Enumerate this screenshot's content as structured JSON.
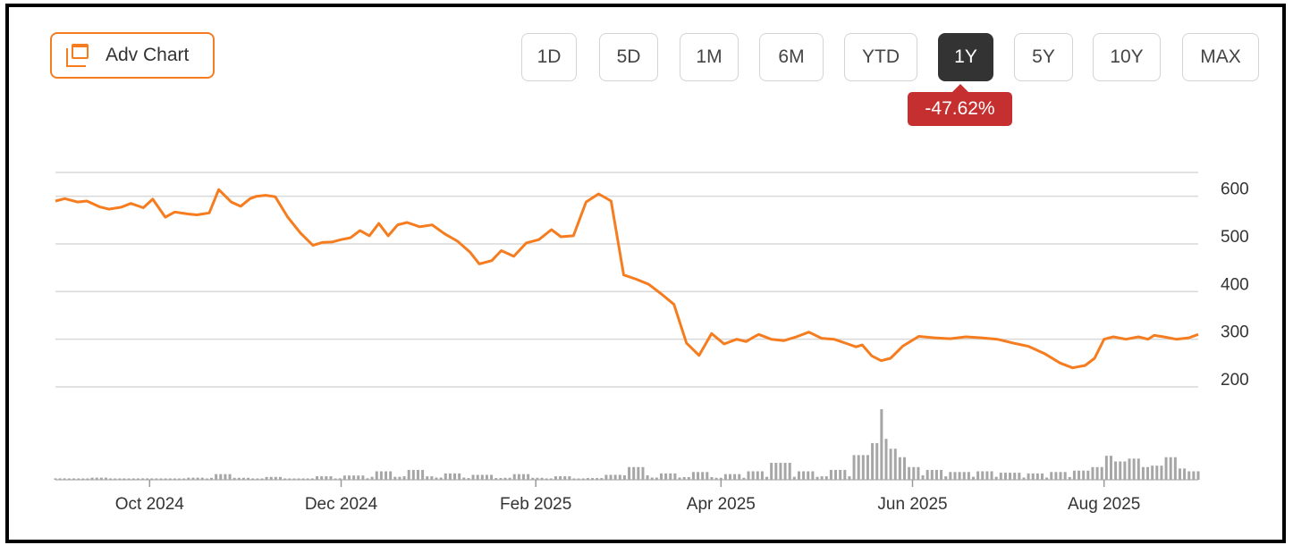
{
  "toolbar": {
    "adv_chart_label": "Adv Chart",
    "ranges": [
      "1D",
      "5D",
      "1M",
      "6M",
      "YTD",
      "1Y",
      "5Y",
      "10Y",
      "MAX"
    ],
    "active_range": "1Y",
    "change_badge": "-47.62%"
  },
  "colors": {
    "line": "#f57c1f",
    "volume": "#a6a6a6",
    "grid": "#d9d9d9",
    "badge": "#c62f2f",
    "active_button": "#333333"
  },
  "chart_data": {
    "type": "line",
    "title": "",
    "xlabel": "",
    "ylabel": "",
    "ylim": [
      200,
      650
    ],
    "y_ticks": [
      600,
      500,
      400,
      300,
      200
    ],
    "x_ticks": [
      "Oct 2024",
      "Dec 2024",
      "Feb 2025",
      "Apr 2025",
      "Jun 2025",
      "Aug 2025"
    ],
    "x_tick_dates": [
      "2024-10-01",
      "2024-12-01",
      "2025-02-01",
      "2025-04-01",
      "2025-06-01",
      "2025-08-01"
    ],
    "grid": true,
    "x_range": [
      "2024-09-01",
      "2025-08-31"
    ],
    "series": [
      {
        "x": [
          "2024-09-01",
          "2024-09-04",
          "2024-09-08",
          "2024-09-11",
          "2024-09-15",
          "2024-09-18",
          "2024-09-22",
          "2024-09-25",
          "2024-09-29",
          "2024-10-02",
          "2024-10-06",
          "2024-10-09",
          "2024-10-13",
          "2024-10-16",
          "2024-10-20",
          "2024-10-23",
          "2024-10-27",
          "2024-10-30",
          "2024-11-02",
          "2024-11-04",
          "2024-11-07",
          "2024-11-10",
          "2024-11-14",
          "2024-11-18",
          "2024-11-22",
          "2024-11-25",
          "2024-11-28",
          "2024-12-01",
          "2024-12-04",
          "2024-12-07",
          "2024-12-10",
          "2024-12-13",
          "2024-12-16",
          "2024-12-19",
          "2024-12-22",
          "2024-12-26",
          "2024-12-30",
          "2025-01-03",
          "2025-01-07",
          "2025-01-11",
          "2025-01-14",
          "2025-01-18",
          "2025-01-21",
          "2025-01-25",
          "2025-01-29",
          "2025-02-02",
          "2025-02-06",
          "2025-02-09",
          "2025-02-13",
          "2025-02-17",
          "2025-02-21",
          "2025-02-25",
          "2025-03-01",
          "2025-03-05",
          "2025-03-09",
          "2025-03-13",
          "2025-03-17",
          "2025-03-21",
          "2025-03-25",
          "2025-03-29",
          "2025-04-02",
          "2025-04-06",
          "2025-04-09",
          "2025-04-11",
          "2025-04-13",
          "2025-04-17",
          "2025-04-21",
          "2025-04-25",
          "2025-04-29",
          "2025-05-03",
          "2025-05-07",
          "2025-05-11",
          "2025-05-14",
          "2025-05-16",
          "2025-05-19",
          "2025-05-22",
          "2025-05-25",
          "2025-05-29",
          "2025-06-03",
          "2025-06-08",
          "2025-06-13",
          "2025-06-18",
          "2025-06-23",
          "2025-06-28",
          "2025-07-03",
          "2025-07-08",
          "2025-07-13",
          "2025-07-18",
          "2025-07-22",
          "2025-07-26",
          "2025-07-29",
          "2025-08-01",
          "2025-08-04",
          "2025-08-08",
          "2025-08-12",
          "2025-08-15",
          "2025-08-17",
          "2025-08-20",
          "2025-08-24",
          "2025-08-28",
          "2025-08-31"
        ],
        "values": [
          590,
          595,
          588,
          590,
          578,
          573,
          577,
          585,
          576,
          594,
          556,
          567,
          563,
          561,
          565,
          614,
          588,
          579,
          595,
          600,
          602,
          599,
          556,
          523,
          497,
          503,
          504,
          509,
          513,
          528,
          517,
          543,
          517,
          540,
          545,
          536,
          540,
          521,
          506,
          483,
          458,
          465,
          486,
          474,
          502,
          509,
          530,
          515,
          517,
          588,
          605,
          590,
          435,
          426,
          415,
          395,
          373,
          292,
          266,
          312,
          290,
          300,
          295,
          303,
          310,
          300,
          297,
          305,
          315,
          302,
          300,
          291,
          284,
          288,
          265,
          255,
          260,
          286,
          306,
          303,
          301,
          305,
          303,
          300,
          292,
          285,
          270,
          250,
          240,
          245,
          260,
          300,
          305,
          300,
          305,
          300,
          308,
          305,
          300,
          303,
          310
        ],
        "name": ""
      }
    ],
    "volume": [
      {
        "x": "2024-09-01",
        "v": 2
      },
      {
        "x": "2024-09-15",
        "v": 3
      },
      {
        "x": "2024-10-01",
        "v": 2
      },
      {
        "x": "2024-10-15",
        "v": 3
      },
      {
        "x": "2024-10-25",
        "v": 8
      },
      {
        "x": "2024-11-10",
        "v": 4
      },
      {
        "x": "2024-11-25",
        "v": 5
      },
      {
        "x": "2024-12-05",
        "v": 6
      },
      {
        "x": "2024-12-15",
        "v": 12
      },
      {
        "x": "2024-12-25",
        "v": 14
      },
      {
        "x": "2025-01-05",
        "v": 9
      },
      {
        "x": "2025-01-15",
        "v": 7
      },
      {
        "x": "2025-01-28",
        "v": 8
      },
      {
        "x": "2025-02-10",
        "v": 5
      },
      {
        "x": "2025-02-25",
        "v": 7
      },
      {
        "x": "2025-03-05",
        "v": 18
      },
      {
        "x": "2025-03-15",
        "v": 9
      },
      {
        "x": "2025-03-25",
        "v": 11
      },
      {
        "x": "2025-04-05",
        "v": 8
      },
      {
        "x": "2025-04-12",
        "v": 12
      },
      {
        "x": "2025-04-20",
        "v": 24
      },
      {
        "x": "2025-04-28",
        "v": 12
      },
      {
        "x": "2025-05-08",
        "v": 14
      },
      {
        "x": "2025-05-16",
        "v": 35
      },
      {
        "x": "2025-05-20",
        "v": 52
      },
      {
        "x": "2025-05-22",
        "v": 100
      },
      {
        "x": "2025-05-24",
        "v": 58
      },
      {
        "x": "2025-05-26",
        "v": 44
      },
      {
        "x": "2025-05-28",
        "v": 32
      },
      {
        "x": "2025-06-01",
        "v": 18
      },
      {
        "x": "2025-06-08",
        "v": 14
      },
      {
        "x": "2025-06-16",
        "v": 11
      },
      {
        "x": "2025-06-24",
        "v": 12
      },
      {
        "x": "2025-07-02",
        "v": 10
      },
      {
        "x": "2025-07-10",
        "v": 9
      },
      {
        "x": "2025-07-18",
        "v": 11
      },
      {
        "x": "2025-07-25",
        "v": 13
      },
      {
        "x": "2025-07-30",
        "v": 18
      },
      {
        "x": "2025-08-02",
        "v": 34
      },
      {
        "x": "2025-08-06",
        "v": 26
      },
      {
        "x": "2025-08-10",
        "v": 30
      },
      {
        "x": "2025-08-14",
        "v": 18
      },
      {
        "x": "2025-08-18",
        "v": 20
      },
      {
        "x": "2025-08-22",
        "v": 32
      },
      {
        "x": "2025-08-26",
        "v": 16
      },
      {
        "x": "2025-08-30",
        "v": 12
      }
    ]
  }
}
